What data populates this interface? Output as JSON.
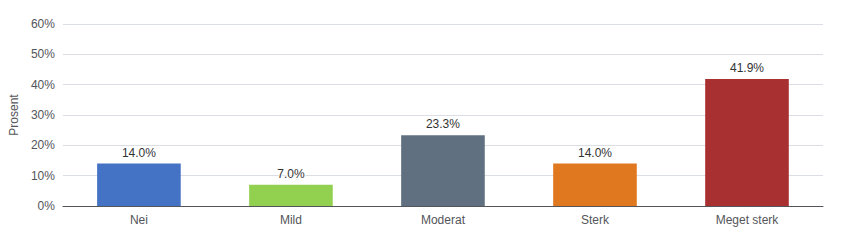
{
  "chart_data": {
    "type": "bar",
    "categories": [
      "Nei",
      "Mild",
      "Moderat",
      "Sterk",
      "Meget sterk"
    ],
    "values": [
      14.0,
      7.0,
      23.3,
      14.0,
      41.9
    ],
    "value_labels": [
      "14.0%",
      "7.0%",
      "23.3%",
      "14.0%",
      "41.9%"
    ],
    "colors": [
      "#4472C4",
      "#92D050",
      "#607080",
      "#E07820",
      "#A83030"
    ],
    "ylabel": "Prosent",
    "ylim": [
      0,
      60
    ],
    "yticks": [
      {
        "value": 0,
        "label": "0%"
      },
      {
        "value": 10,
        "label": "10%"
      },
      {
        "value": 20,
        "label": "20%"
      },
      {
        "value": 30,
        "label": "30%"
      },
      {
        "value": 40,
        "label": "40%"
      },
      {
        "value": 50,
        "label": "50%"
      },
      {
        "value": 60,
        "label": "60%"
      }
    ],
    "grid": true,
    "data_labels": true
  }
}
